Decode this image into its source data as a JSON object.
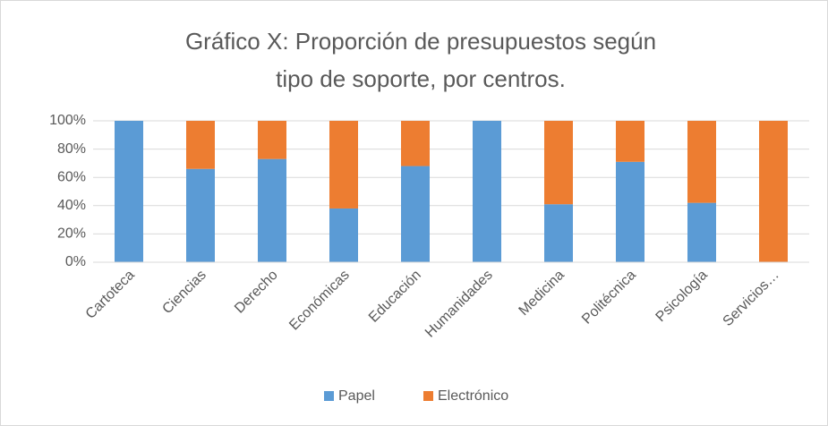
{
  "chart_data": {
    "type": "stacked_bar",
    "title": [
      "Gráfico X: Proporción de presupuestos según",
      "tipo de soporte, por centros."
    ],
    "categories": [
      "Cartoteca",
      "Ciencias",
      "Derecho",
      "Económicas",
      "Educación",
      "Humanidades",
      "Medicina",
      "Politécnica",
      "Psicología",
      "Servicios…"
    ],
    "series": [
      {
        "name": "Papel",
        "color": "#5b9bd5",
        "values": [
          100,
          66,
          73,
          38,
          68,
          100,
          41,
          71,
          42,
          0
        ]
      },
      {
        "name": "Electrónico",
        "color": "#ed7d31",
        "values": [
          0,
          34,
          27,
          62,
          32,
          0,
          59,
          29,
          58,
          100
        ]
      }
    ],
    "ylim": [
      0,
      100
    ],
    "yticks": [
      {
        "value": 0,
        "label": "0%"
      },
      {
        "value": 20,
        "label": "20%"
      },
      {
        "value": 40,
        "label": "40%"
      },
      {
        "value": 60,
        "label": "60%"
      },
      {
        "value": 80,
        "label": "80%"
      },
      {
        "value": 100,
        "label": "100%"
      }
    ],
    "grid": true,
    "legend": "bottom"
  }
}
